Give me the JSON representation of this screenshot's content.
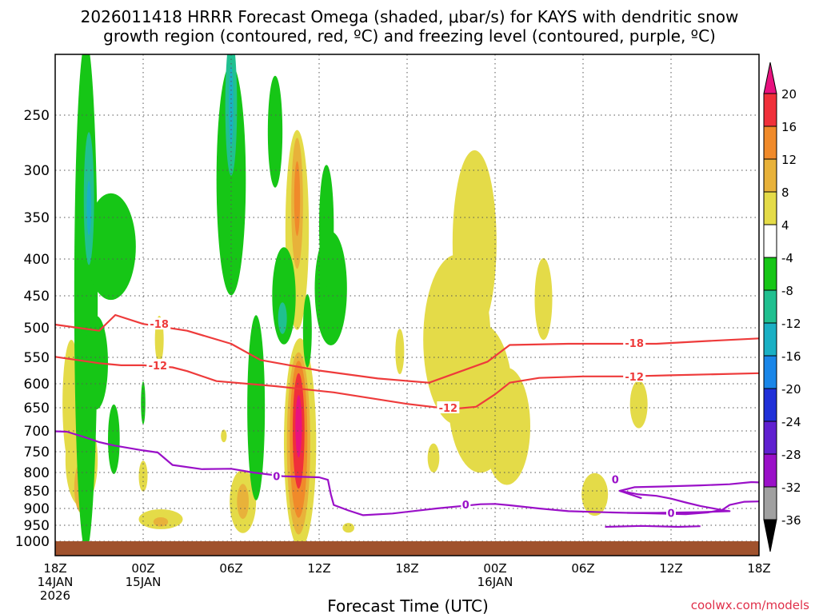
{
  "chart_data": {
    "type": "heatmap",
    "title_line1": "2026011418 HRRR Forecast Omega (shaded, μbar/s) for KAYS with dendritic snow",
    "title_line2": "growth region (contoured, red, ºC) and freezing level (contoured, purple, ºC)",
    "xlabel": "Forecast Time (UTC)",
    "credit": "coolwx.com/models",
    "x_range_hours": [
      0,
      48
    ],
    "y_range_hpa": [
      200,
      1025
    ],
    "y_ticks": [
      250,
      300,
      350,
      400,
      450,
      500,
      550,
      600,
      650,
      700,
      750,
      800,
      850,
      900,
      950,
      1000
    ],
    "x_ticks": [
      {
        "h": 0,
        "lines": [
          "18Z",
          "14JAN",
          "2026"
        ]
      },
      {
        "h": 6,
        "lines": [
          "00Z",
          "15JAN"
        ]
      },
      {
        "h": 12,
        "lines": [
          "06Z"
        ]
      },
      {
        "h": 18,
        "lines": [
          "12Z"
        ]
      },
      {
        "h": 24,
        "lines": [
          "18Z"
        ]
      },
      {
        "h": 30,
        "lines": [
          "00Z",
          "16JAN"
        ]
      },
      {
        "h": 36,
        "lines": [
          "06Z"
        ]
      },
      {
        "h": 42,
        "lines": [
          "12Z"
        ]
      },
      {
        "h": 48,
        "lines": [
          "18Z"
        ]
      }
    ],
    "colorbar": {
      "labels": [
        "20",
        "16",
        "12",
        "8",
        "4",
        "-4",
        "-8",
        "-12",
        "-16",
        "-20",
        "-24",
        "-28",
        "-32",
        "-36"
      ],
      "colors": {
        "gt20": "#e8127f",
        "16_20": "#f0303a",
        "12_16": "#f08a2a",
        "8_12": "#e8b23a",
        "4_8": "#e4db48",
        "neg4_4": "#ffffff",
        "neg8_neg4": "#16c616",
        "neg12_neg8": "#20c090",
        "neg16_neg12": "#1ab0c4",
        "neg20_neg16": "#1a86e8",
        "neg24_neg20": "#2030d8",
        "neg28_neg24": "#6020d0",
        "neg32_neg28": "#9a10c8",
        "neg36_neg32": "#a0a0a0",
        "lt_neg36": "#000000"
      }
    },
    "contour_labels": {
      "red_top": "-18",
      "red_bottom": "-12",
      "purple": "0"
    },
    "contours": {
      "red_minus18": [
        [
          0,
          495
        ],
        [
          3,
          505
        ],
        [
          4.1,
          480
        ],
        [
          6,
          494
        ],
        [
          9,
          505
        ],
        [
          12,
          527
        ],
        [
          14,
          555
        ],
        [
          18,
          575
        ],
        [
          22,
          590
        ],
        [
          25.5,
          598
        ],
        [
          29.5,
          558
        ],
        [
          31,
          529
        ],
        [
          35,
          527
        ],
        [
          38,
          527
        ],
        [
          41,
          527
        ],
        [
          44,
          523
        ],
        [
          48,
          518
        ]
      ],
      "red_minus12": [
        [
          0,
          549
        ],
        [
          3,
          561
        ],
        [
          4.5,
          565
        ],
        [
          6,
          565
        ],
        [
          8,
          569
        ],
        [
          9,
          576
        ],
        [
          11,
          595
        ],
        [
          15,
          605
        ],
        [
          19,
          618
        ],
        [
          24,
          642
        ],
        [
          27,
          653
        ],
        [
          28.7,
          648
        ],
        [
          30,
          622
        ],
        [
          31,
          598
        ],
        [
          33,
          589
        ],
        [
          36,
          586
        ],
        [
          39,
          586
        ],
        [
          42,
          584
        ],
        [
          45,
          582
        ],
        [
          48,
          580
        ]
      ],
      "purple_0_upper": [
        [
          0,
          701
        ],
        [
          0.8,
          702
        ],
        [
          2,
          715
        ],
        [
          3,
          727
        ],
        [
          4,
          735
        ],
        [
          6,
          747
        ],
        [
          7,
          752
        ],
        [
          8,
          782
        ],
        [
          10,
          792
        ],
        [
          12,
          791
        ],
        [
          13.5,
          800
        ],
        [
          15.5,
          810
        ],
        [
          17,
          812
        ],
        [
          18,
          813
        ],
        [
          18.6,
          820
        ],
        [
          18.8,
          860
        ],
        [
          19,
          890
        ],
        [
          20,
          906
        ],
        [
          21,
          920
        ],
        [
          23,
          915
        ],
        [
          26,
          900
        ],
        [
          29,
          888
        ],
        [
          30,
          887
        ],
        [
          31,
          891
        ],
        [
          33,
          900
        ],
        [
          35,
          908
        ],
        [
          38,
          912
        ],
        [
          41,
          915
        ],
        [
          43,
          917
        ],
        [
          44.5,
          912
        ],
        [
          45.5,
          904
        ],
        [
          46,
          890
        ],
        [
          47,
          881
        ],
        [
          48,
          880
        ]
      ],
      "purple_0_loop": [
        [
          40,
          871
        ],
        [
          38.5,
          850
        ],
        [
          39.5,
          840
        ],
        [
          41.5,
          838
        ],
        [
          44,
          835
        ],
        [
          46,
          832
        ],
        [
          47.5,
          826
        ],
        [
          48,
          827
        ]
      ],
      "purple_0_inner": [
        [
          38.5,
          850
        ],
        [
          39.8,
          860
        ],
        [
          41,
          864
        ],
        [
          42,
          872
        ],
        [
          43,
          883
        ],
        [
          44,
          893
        ],
        [
          45.5,
          905
        ],
        [
          46,
          908
        ],
        [
          44,
          911
        ],
        [
          41,
          913
        ],
        [
          39,
          913
        ]
      ],
      "purple_0_bottom": [
        [
          37.5,
          955
        ],
        [
          40,
          952
        ],
        [
          42.5,
          955
        ],
        [
          44,
          953
        ]
      ]
    },
    "blobs_4_8": [
      {
        "x": 1.8,
        "p": 770,
        "rx": 1.1,
        "rp": 115
      },
      {
        "x": 1.1,
        "p": 640,
        "rx": 0.6,
        "rp": 130
      },
      {
        "x": 7.2,
        "p": 932,
        "rx": 1.5,
        "rp": 30
      },
      {
        "x": 12.8,
        "p": 880,
        "rx": 0.9,
        "rp": 90
      },
      {
        "x": 16.7,
        "p": 730,
        "rx": 1.1,
        "rp": 240
      },
      {
        "x": 16.5,
        "p": 365,
        "rx": 0.8,
        "rp": 115
      },
      {
        "x": 28.6,
        "p": 380,
        "rx": 1.5,
        "rp": 110
      },
      {
        "x": 27.4,
        "p": 520,
        "rx": 2.3,
        "rp": 140
      },
      {
        "x": 29.0,
        "p": 630,
        "rx": 2.2,
        "rp": 150
      },
      {
        "x": 30.8,
        "p": 690,
        "rx": 1.6,
        "rp": 130
      },
      {
        "x": 36.8,
        "p": 860,
        "rx": 0.9,
        "rp": 60
      },
      {
        "x": 39.8,
        "p": 643,
        "rx": 0.6,
        "rp": 50
      },
      {
        "x": 33.3,
        "p": 455,
        "rx": 0.6,
        "rp": 60
      },
      {
        "x": 25.8,
        "p": 765,
        "rx": 0.4,
        "rp": 35
      },
      {
        "x": 23.5,
        "p": 540,
        "rx": 0.3,
        "rp": 40
      },
      {
        "x": 7.1,
        "p": 520,
        "rx": 0.3,
        "rp": 40
      },
      {
        "x": 6.0,
        "p": 810,
        "rx": 0.3,
        "rp": 40
      },
      {
        "x": 11.5,
        "p": 712,
        "rx": 0.2,
        "rp": 15
      },
      {
        "x": 20.0,
        "p": 958,
        "rx": 0.4,
        "rp": 15
      }
    ],
    "blobs_8_12": [
      {
        "x": 1.8,
        "p": 840,
        "rx": 0.5,
        "rp": 70
      },
      {
        "x": 12.8,
        "p": 880,
        "rx": 0.4,
        "rp": 50
      },
      {
        "x": 16.6,
        "p": 730,
        "rx": 0.8,
        "rp": 210
      },
      {
        "x": 16.5,
        "p": 335,
        "rx": 0.4,
        "rp": 70
      },
      {
        "x": 7.2,
        "p": 940,
        "rx": 0.5,
        "rp": 14
      }
    ],
    "blobs_12_16": [
      {
        "x": 16.6,
        "p": 720,
        "rx": 0.6,
        "rp": 180
      },
      {
        "x": 16.5,
        "p": 330,
        "rx": 0.2,
        "rp": 40
      }
    ],
    "blobs_16_20": [
      {
        "x": 16.6,
        "p": 700,
        "rx": 0.4,
        "rp": 130
      }
    ],
    "blobs_gt20": [
      {
        "x": 16.6,
        "p": 690,
        "rx": 0.22,
        "rp": 70
      }
    ],
    "blobs_neg4_neg8": [
      {
        "x": 2.1,
        "p": 450,
        "rx": 0.8,
        "rp": 360
      },
      {
        "x": 3.8,
        "p": 385,
        "rx": 1.7,
        "rp": 65
      },
      {
        "x": 2.8,
        "p": 560,
        "rx": 0.8,
        "rp": 85
      },
      {
        "x": 4.0,
        "p": 720,
        "rx": 0.4,
        "rp": 80
      },
      {
        "x": 6.0,
        "p": 640,
        "rx": 0.15,
        "rp": 45
      },
      {
        "x": 12.0,
        "p": 310,
        "rx": 1.0,
        "rp": 125
      },
      {
        "x": 13.7,
        "p": 650,
        "rx": 0.6,
        "rp": 190
      },
      {
        "x": 15.0,
        "p": 265,
        "rx": 0.5,
        "rp": 55
      },
      {
        "x": 15.6,
        "p": 450,
        "rx": 0.8,
        "rp": 70
      },
      {
        "x": 18.8,
        "p": 440,
        "rx": 1.1,
        "rp": 80
      },
      {
        "x": 17.2,
        "p": 505,
        "rx": 0.3,
        "rp": 60
      },
      {
        "x": 18.5,
        "p": 360,
        "rx": 0.5,
        "rp": 70
      }
    ],
    "blobs_neg8_neg12": [
      {
        "x": 2.3,
        "p": 330,
        "rx": 0.35,
        "rp": 70
      },
      {
        "x": 12.0,
        "p": 240,
        "rx": 0.4,
        "rp": 70
      },
      {
        "x": 15.5,
        "p": 485,
        "rx": 0.3,
        "rp": 25
      }
    ],
    "blobs_neg12_neg16": [
      {
        "x": 2.3,
        "p": 340,
        "rx": 0.15,
        "rp": 30
      },
      {
        "x": 12.0,
        "p": 240,
        "rx": 0.15,
        "rp": 40
      }
    ]
  }
}
